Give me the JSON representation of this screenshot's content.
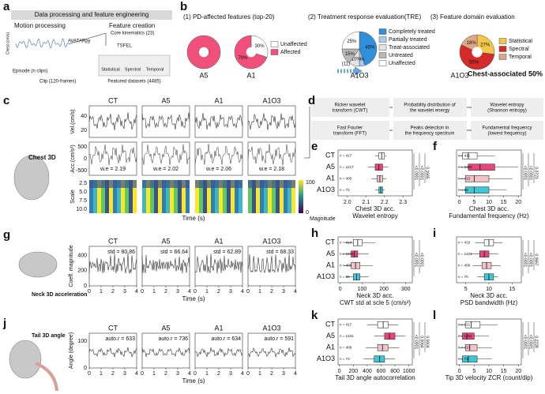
{
  "a": {
    "label": "a",
    "banner": "Data processing and feature engineering",
    "motion": "Motion processing",
    "chest": "Chest (cm/s)",
    "episode": "Episode (n clips)",
    "clip": "Clip (120-frames)",
    "avatar": "AVATARpy",
    "creation": "Feature creation",
    "core": "Core kinematics (23)",
    "tsfel": "TSFEL",
    "domains": [
      "Statistical",
      "Spectral",
      "Temporal"
    ],
    "datasets": "Featured datasets (4485)"
  },
  "b": {
    "label": "b",
    "titles": [
      "(1) PD-affected features (top-20)",
      "(2) Treatment response evaluation(TRE)",
      "(3) Feature domain evaluation"
    ],
    "pies": [
      {
        "name": "A5",
        "values": [
          100
        ],
        "value_labels": [
          "100%"
        ],
        "colors": [
          "#f0507a"
        ]
      },
      {
        "name": "A1",
        "values": [
          30,
          70
        ],
        "value_labels": [
          "30%",
          "70%"
        ],
        "colors": [
          "#ffffff",
          "#f0507a"
        ]
      },
      {
        "name": "A1O3",
        "values": [
          45,
          5,
          10,
          15,
          25
        ],
        "value_labels": [
          "45%",
          "5%",
          "10%",
          "15%",
          "25%"
        ],
        "colors": [
          "#2f8fd8",
          "#a9cdee",
          "#e4e4e4",
          "#b8b8b8",
          "#ffffff"
        ]
      },
      {
        "name": "A1O3",
        "values": [
          27,
          55,
          18
        ],
        "value_labels": [
          "27%",
          "55%",
          "18%"
        ],
        "colors": [
          "#f2c64a",
          "#d42a2a",
          "#dca888"
        ]
      }
    ],
    "legend1": {
      "names": [
        "Unaffected",
        "Affected"
      ],
      "colors": [
        "#ffffff",
        "#f0507a"
      ]
    },
    "legend2": {
      "names": [
        "Completely treated",
        "Partially treated",
        "Treat-associated",
        "Untreated",
        "Unaffected"
      ],
      "colors": [
        "#2f8fd8",
        "#a9cdee",
        "#e4e4e4",
        "#b8b8b8",
        "#ffffff"
      ]
    },
    "legend3": {
      "names": [
        "Statistical",
        "Spectral",
        "Temporal"
      ],
      "colors": [
        "#f2c64a",
        "#d42a2a",
        "#dca888"
      ]
    },
    "arrow": "(11)",
    "chest_assoc": "Chest-associated 50%"
  },
  "c": {
    "label": "c",
    "groups": [
      "CT",
      "A5",
      "A1",
      "A1O3"
    ],
    "body": "Chest 3D",
    "ylabels": [
      "Vel.(cm/s)",
      "Acc.(cm/s²)",
      "Scale"
    ],
    "vel_ticks": [
      20,
      40
    ],
    "acc_ticks": [
      500,
      0,
      -500
    ],
    "scale_ticks": [
      "2.5",
      "5.0",
      "7.5",
      "10.0"
    ],
    "we": [
      "w.e = 2.19",
      "w.e = 2.02",
      "w.e = 2.06",
      "w.e = 2.18"
    ],
    "cbar": [
      "100",
      "0"
    ],
    "cbar_label": "Magnitude",
    "xlabel": "Time (s)"
  },
  "d": {
    "label": "d",
    "rows": [
      [
        "Ricker wavelet transform (CWT)",
        "Probability distribution of the wavelet energy",
        "Wavelet entropy (Shannon entropy)"
      ],
      [
        "Fast Fourier transform (FFT)",
        "Peaks detection in the frequency spectrum",
        "Fundamental frequency (lowest frequency)"
      ]
    ]
  },
  "box_colors": [
    "#ffffff",
    "#e8457a",
    "#f2c4c8",
    "#3cc8d8"
  ],
  "box_panels": [
    {
      "label": "e",
      "groups": [
        "CT",
        "A5",
        "A1",
        "A1O3"
      ],
      "n": [
        "n = 417",
        "n = 1217",
        "n = 405",
        "n = 72"
      ],
      "xlim": [
        1.95,
        2.35
      ],
      "xticks": [
        {
          "value": 2.0,
          "label": "2.0"
        },
        {
          "value": 2.1,
          "label": "2.1"
        },
        {
          "value": 2.2,
          "label": "2.2"
        },
        {
          "value": 2.3,
          "label": "2.3"
        }
      ],
      "boxes": [
        [
          2.15,
          2.17,
          2.185,
          2.2,
          2.21
        ],
        [
          2.11,
          2.15,
          2.17,
          2.19,
          2.22
        ],
        [
          2.13,
          2.16,
          2.175,
          2.19,
          2.21
        ],
        [
          2.15,
          2.17,
          2.18,
          2.19,
          2.2
        ]
      ],
      "pvals": [
        "<0.0001",
        "<0.0001",
        "0.1665"
      ],
      "xlabel": [
        "Chest 3D acc.",
        "Wavelet entropy"
      ]
    },
    {
      "label": "f",
      "n": [
        "n = 421",
        "n = 1258",
        "n = 413",
        "n = 68"
      ],
      "xlim": [
        -1,
        21
      ],
      "xticks": [
        0,
        5,
        10,
        15,
        20
      ],
      "boxes": [
        [
          0,
          1,
          3,
          6,
          12
        ],
        [
          0,
          3,
          7,
          12,
          20
        ],
        [
          0,
          2,
          5,
          10,
          18
        ],
        [
          0,
          2,
          5,
          10,
          16
        ]
      ],
      "pvals": [
        "<0.0001",
        "<0.0001",
        "0.0723"
      ],
      "xlabel": [
        "Chest 3D acc.",
        "Fundamental frequency (Hz)"
      ]
    },
    {
      "label": "h",
      "groups": [
        "CT",
        "A5",
        "A1",
        "A1O3"
      ],
      "n": [
        "n = 414",
        "n = 1218",
        "n = 409",
        "n = 69"
      ],
      "xlim": [
        -10,
        330
      ],
      "xticks": [
        0,
        100,
        200,
        300
      ],
      "boxes": [
        [
          20,
          60,
          80,
          100,
          160
        ],
        [
          10,
          50,
          65,
          80,
          130
        ],
        [
          15,
          50,
          70,
          90,
          150
        ],
        [
          25,
          60,
          75,
          90,
          130
        ]
      ],
      "pvals": [
        "<0.0001",
        "<0.0001"
      ],
      "xlabel": [
        "Neck 3D acc.",
        "CWT std at scle 5 (cm/s²)"
      ]
    },
    {
      "label": "i",
      "n": [
        "n = 419",
        "n = 1221",
        "n = 406",
        "n = 70"
      ],
      "xlim": [
        3,
        17
      ],
      "xticks": [
        5,
        10,
        15
      ],
      "boxes": [
        [
          7,
          9,
          10,
          11,
          13
        ],
        [
          6,
          8,
          9,
          10,
          12
        ],
        [
          6.5,
          8.5,
          9.5,
          10.5,
          12.5
        ],
        [
          7.5,
          9,
          10,
          11,
          12
        ]
      ],
      "pvals": [
        "<0.0001",
        "<0.0001",
        "0.0667"
      ],
      "xlabel": [
        "Neck 3D acc.",
        "PSD bandwidth (Hz)"
      ]
    },
    {
      "label": "k",
      "groups": [
        "CT",
        "A5",
        "A1",
        "A1O3"
      ],
      "n": [
        "n = 417",
        "n = 1231",
        "n = 408",
        "n = 73"
      ],
      "xlim": [
        -20,
        1050
      ],
      "xticks": [
        0,
        200,
        400,
        600,
        800,
        1000
      ],
      "boxes": [
        [
          400,
          550,
          630,
          700,
          850
        ],
        [
          500,
          650,
          720,
          800,
          950
        ],
        [
          380,
          550,
          620,
          700,
          860
        ],
        [
          350,
          500,
          580,
          650,
          800
        ]
      ],
      "pvals": [
        "<0.0001",
        "0.0064",
        "0.0004"
      ],
      "xlabel": [
        "Tail 3D angle autocorrelation"
      ]
    },
    {
      "label": "l",
      "n": [
        "n = 421",
        "n = 1262",
        "n = 413",
        "n = 73"
      ],
      "xlim": [
        -1,
        21
      ],
      "xticks": [
        0,
        5,
        10,
        15,
        20
      ],
      "boxes": [
        [
          0,
          2,
          4,
          7,
          13
        ],
        [
          0,
          1,
          2.5,
          5,
          10
        ],
        [
          0,
          2,
          3.5,
          6,
          11
        ],
        [
          0,
          1,
          3,
          6,
          11
        ]
      ],
      "pvals": [
        "<0.0001",
        "<0.0001",
        "0.2228"
      ],
      "xlabel": [
        "Tip 3D velocity ZCR  (count/dip)"
      ]
    }
  ],
  "g": {
    "label": "g",
    "groups": [
      "CT",
      "A5",
      "A1",
      "A1O3"
    ],
    "body": "Neck 3D acceleration",
    "ylabel": "Coeff. magnitude",
    "yticks": [
      0,
      200,
      400
    ],
    "stats": [
      "std = 80.86",
      "std = 66.64",
      "std = 62.89",
      "std = 68.33"
    ],
    "xticks": [
      0,
      1,
      2,
      3,
      4
    ],
    "xlabel": "Time (s)"
  },
  "j": {
    "label": "j",
    "groups": [
      "CT",
      "A5",
      "A1",
      "A1O3"
    ],
    "body": "Tail 3D angle",
    "ylabel": "Angle (degree)",
    "yticks": [
      0,
      100
    ],
    "stats": [
      "auto.r = 633",
      "auto.r = 736",
      "auto.r = 634",
      "auto.r = 591"
    ],
    "xticks": [
      0,
      1,
      2,
      3,
      4
    ],
    "xlabel": "Time (s)"
  }
}
